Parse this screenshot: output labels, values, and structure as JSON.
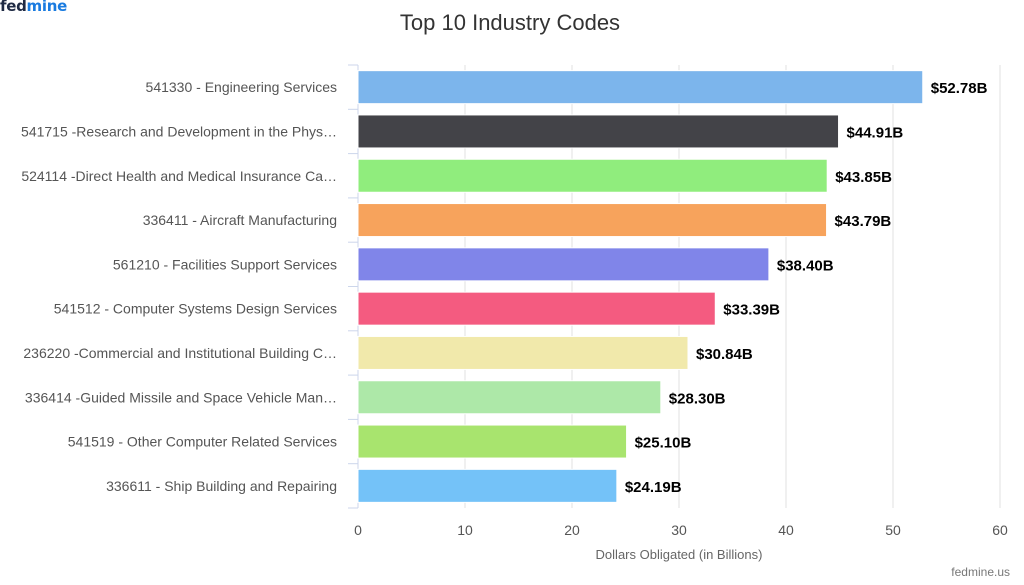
{
  "brand": {
    "logo_part1": "fed",
    "logo_part2": "mine",
    "credit": "fedmine.us"
  },
  "chart_data": {
    "type": "bar",
    "orientation": "horizontal",
    "title": "Top 10 Industry Codes",
    "xlabel": "Dollars Obligated (in Billions)",
    "ylabel": "",
    "xlim": [
      0,
      60
    ],
    "xticks": [
      0,
      10,
      20,
      30,
      40,
      50,
      60
    ],
    "grid": true,
    "categories": [
      "541330 - Engineering Services",
      "541715 -Research and Development in the Phys…",
      "524114 -Direct Health and Medical Insurance Ca…",
      "336411 - Aircraft Manufacturing",
      "561210 - Facilities Support Services",
      "541512 - Computer Systems Design Services",
      "236220 -Commercial and Institutional Building C…",
      "336414 -Guided Missile and Space Vehicle Man…",
      "541519 - Other Computer Related Services",
      "336611 - Ship Building and Repairing"
    ],
    "values": [
      52.78,
      44.91,
      43.85,
      43.79,
      38.4,
      33.39,
      30.84,
      28.3,
      25.1,
      24.19
    ],
    "data_labels": [
      "$52.78B",
      "$44.91B",
      "$43.85B",
      "$43.79B",
      "$38.40B",
      "$33.39B",
      "$30.84B",
      "$28.30B",
      "$25.10B",
      "$24.19B"
    ],
    "colors": [
      "#7cb5ec",
      "#434348",
      "#90ed7d",
      "#f7a35c",
      "#8085e9",
      "#f45b80",
      "#f1e9ab",
      "#ade8a8",
      "#a8e46e",
      "#74c2f8"
    ]
  }
}
